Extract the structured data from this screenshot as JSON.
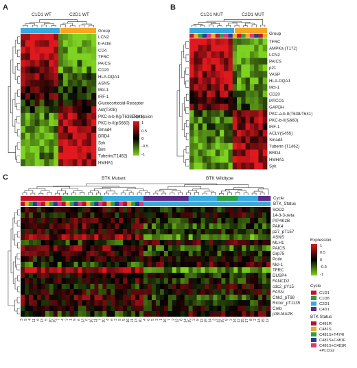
{
  "panels": {
    "A": {
      "letter": "A",
      "col_groups": [
        "C1D1 WT",
        "C2D1 WT"
      ],
      "group_label": "Group",
      "rows": [
        "LCN2",
        "b-Actin",
        "CD4",
        "TFRC",
        "PAICS",
        "CD20",
        "HLA-DQA1",
        "ASNS",
        "Mcl-1",
        "IRF-1",
        "Glucocorticoid-Receptor",
        "Akt(T308)",
        "PKC-a-b-II(pT638/T641)",
        "PKC-b-II(pS660)",
        "Smad4",
        "BRD4",
        "Syk",
        "Bim",
        "Tuberin(T1462)",
        "HMHA1"
      ],
      "legend_title": "Expression",
      "legend_ticks": [
        "1",
        "0.5",
        "0",
        "-0.5",
        "-1"
      ]
    },
    "B": {
      "letter": "B",
      "col_groups": [
        "C1D1 MUT",
        "C2D1 MUT"
      ],
      "group_label": "Group",
      "rows": [
        "TFRC",
        "AMPKa (T172)",
        "LCN2",
        "PAICS",
        "p21",
        "VASP",
        "HLA-DQA1",
        "Mcl-1",
        "CD20",
        "MTCO1",
        "GAPDH",
        "PKC-a-b-II(T638/T641)",
        "PKC-b-II(S660)",
        "IRF-1",
        "ACLY(S455)",
        "Smad4",
        "Tuberin (T1462)",
        "BRD4",
        "HMHA1",
        "Syk"
      ]
    },
    "C": {
      "letter": "C",
      "col_groups": [
        "BTK Mutant",
        "BTK Wildtype"
      ],
      "bar_labels": [
        "Cycle",
        "BTK_Status"
      ],
      "rows": [
        "SOD2",
        "14-3-3-zeta",
        "PIP4K2B",
        "PAK4",
        "p27_pT157",
        "ASNS",
        "MLH1",
        "PAICS",
        "Grp75",
        "Porin",
        "Mcl-1",
        "TFRC",
        "DUSP4",
        "FANCD2",
        "cdc2_pY15",
        "FASN",
        "Chk2_pT68",
        "Rictor_pT1135",
        "Creb",
        "p38-MAPK"
      ],
      "col_labels": [
        "3",
        "9",
        "4",
        "11",
        "6",
        "13",
        "5",
        "10",
        "16",
        "7",
        "4",
        "3",
        "1",
        "9",
        "6",
        "13",
        "5",
        "16",
        "11",
        "7",
        "10",
        "4",
        "6",
        "3",
        "9",
        "5",
        "16",
        "11",
        "13",
        "10",
        "4",
        "6",
        "5",
        "3",
        "1",
        "16",
        "7",
        "2",
        "12",
        "8",
        "14",
        "15",
        "2",
        "8",
        "12",
        "15",
        "14",
        "2",
        "12",
        "15",
        "8",
        "2",
        "14",
        "12",
        "15",
        "17",
        "8",
        "2",
        "14",
        "15",
        "12"
      ],
      "legend_expression": {
        "title": "Expression",
        "ticks": [
          "1",
          "0.5",
          "0",
          "-0.5",
          "-1"
        ]
      },
      "legend_cycle": {
        "title": "Cycle",
        "items": [
          {
            "label": "C1D1",
            "color": "#c0162c"
          },
          {
            "label": "C1D8",
            "color": "#2e9e45"
          },
          {
            "label": "C2D1",
            "color": "#39a8dc"
          },
          {
            "label": "C4D1",
            "color": "#5a2d86"
          }
        ]
      },
      "legend_btk": {
        "title": "BTK Status",
        "items": [
          {
            "label": "C481R",
            "color": "#b5152a"
          },
          {
            "label": "C481S",
            "color": "#f5a623"
          },
          {
            "label": "C481S+T474I",
            "color": "#2e9e45"
          },
          {
            "label": "C481S+C481F",
            "color": "#2a3c8f"
          },
          {
            "label": "C481S+C481R +PLCG2",
            "color": "#e5337a"
          }
        ]
      }
    }
  },
  "colors": {
    "group1": "#39a8dc",
    "group2": "#f5a623",
    "heat_high": "#e0191e",
    "heat_mid": "#000000",
    "heat_low": "#7ed321"
  }
}
